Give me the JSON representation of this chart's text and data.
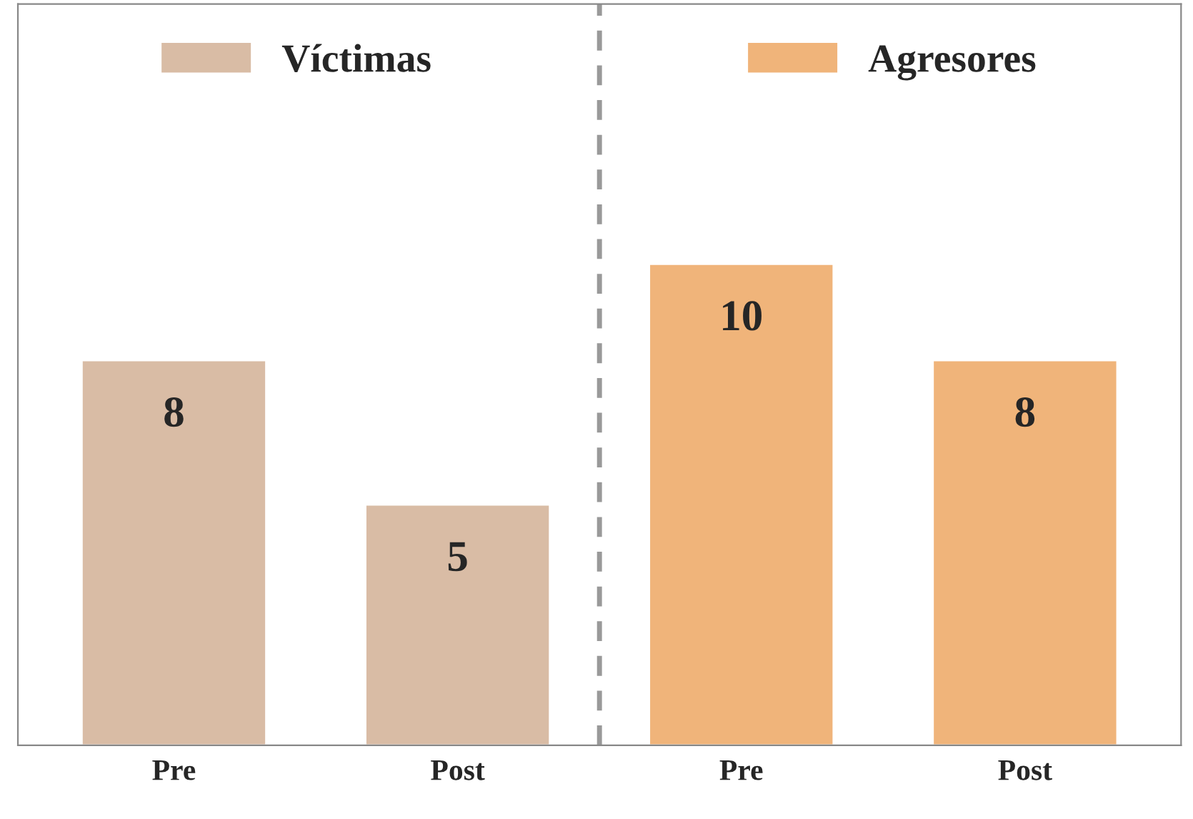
{
  "chart_data": {
    "type": "bar",
    "categories": [
      "Pre",
      "Post",
      "Pre",
      "Post"
    ],
    "series": [
      {
        "name": "Víctimas",
        "color": "#d9bca5",
        "values": [
          8,
          5,
          null,
          null
        ]
      },
      {
        "name": "Agresores",
        "color": "#f0b47a",
        "values": [
          null,
          null,
          10,
          8
        ]
      }
    ],
    "data_labels": true,
    "ylim": [
      0,
      15.4
    ],
    "tick_labels": "x",
    "legend": "top",
    "grid": false
  }
}
